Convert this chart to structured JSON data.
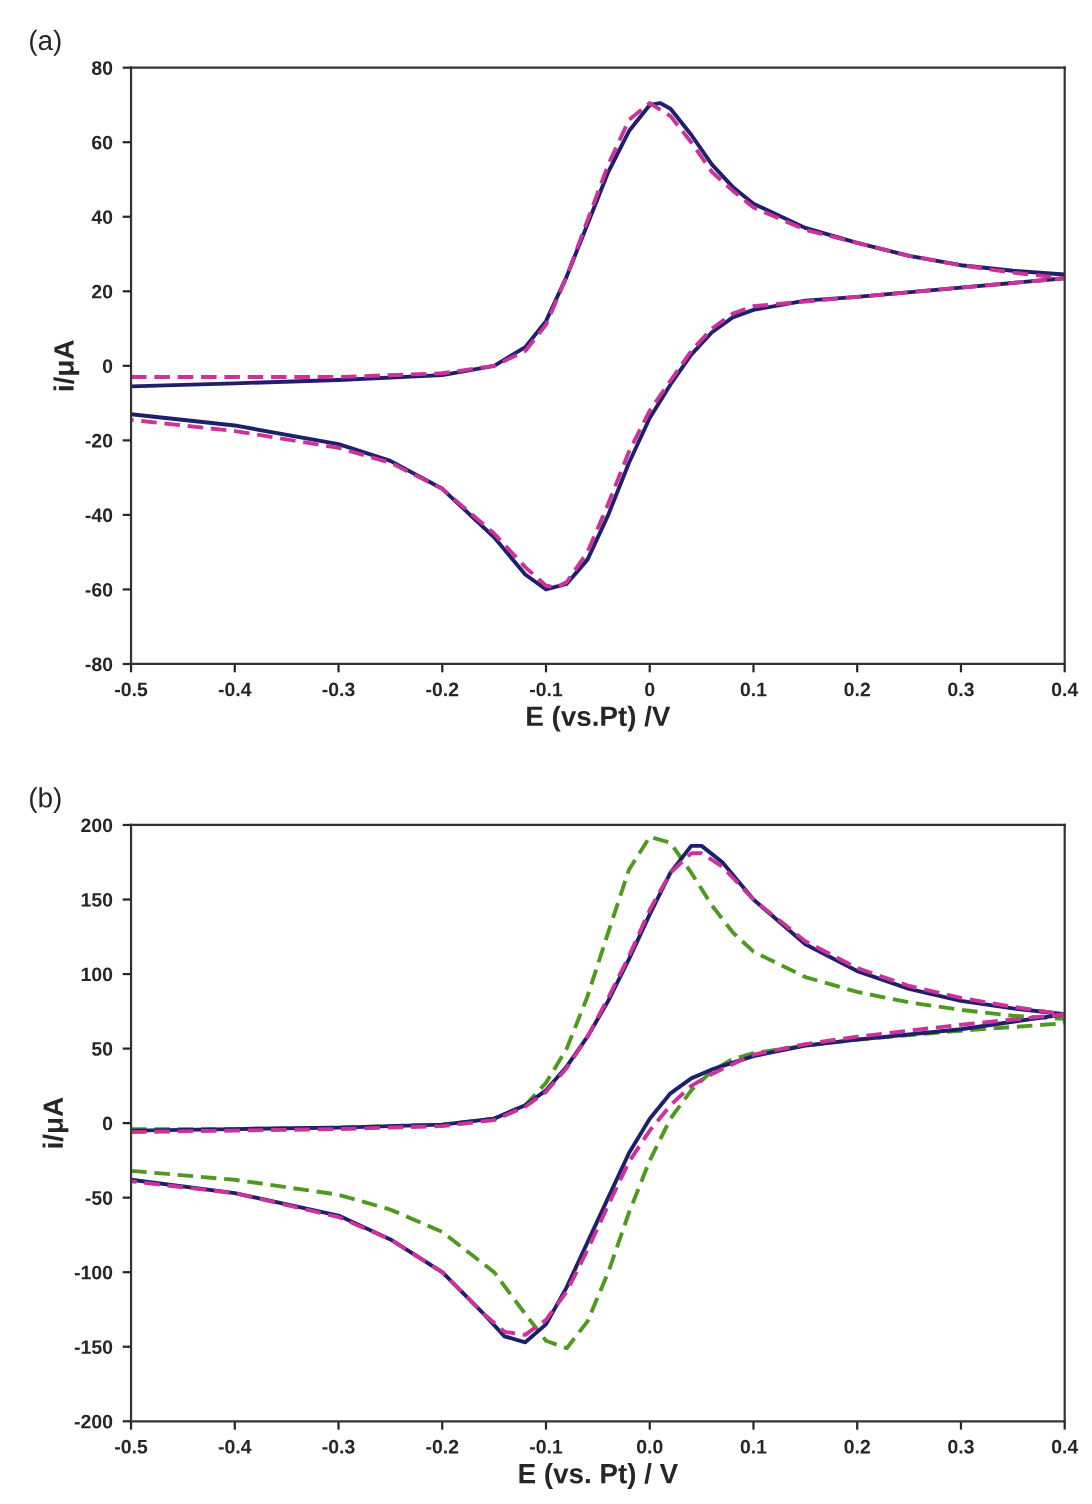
{
  "chart_data": [
    {
      "type": "line",
      "title": "(a)",
      "xlabel": "E (vs.Pt) /V",
      "ylabel": "i/μA",
      "xlim": [
        -0.5,
        0.4
      ],
      "ylim": [
        -80,
        80
      ],
      "xticks": [
        -0.5,
        -0.4,
        -0.3,
        -0.2,
        -0.1,
        0,
        0.1,
        0.2,
        0.3,
        0.4
      ],
      "yticks": [
        -80,
        -60,
        -40,
        -20,
        0,
        20,
        40,
        60,
        80
      ],
      "grid": false,
      "legend": false,
      "series": [
        {
          "color": "#1f1f6e",
          "line_style": "solid",
          "x": [
            -0.5,
            -0.4,
            -0.3,
            -0.2,
            -0.15,
            -0.12,
            -0.1,
            -0.08,
            -0.06,
            -0.04,
            -0.02,
            0,
            0.01,
            0.02,
            0.04,
            0.06,
            0.08,
            0.1,
            0.15,
            0.2,
            0.25,
            0.3,
            0.35,
            0.4,
            0.4,
            0.3,
            0.2,
            0.15,
            0.1,
            0.08,
            0.06,
            0.04,
            0.02,
            0,
            -0.02,
            -0.04,
            -0.06,
            -0.08,
            -0.1,
            -0.12,
            -0.15,
            -0.2,
            -0.25,
            -0.3,
            -0.4,
            -0.5
          ],
          "values": [
            -5.5,
            -4.7,
            -3.8,
            -2.5,
            0,
            5,
            12,
            24,
            38,
            52,
            63,
            70,
            70.5,
            69,
            62,
            54,
            48,
            43.5,
            37,
            33,
            29.5,
            27,
            25.5,
            24.5,
            23.5,
            21,
            18.5,
            17.5,
            15,
            13,
            9,
            3,
            -5,
            -14,
            -26,
            -40,
            -52,
            -58.5,
            -60,
            -56,
            -46,
            -33,
            -25.5,
            -21,
            -16,
            -13
          ]
        },
        {
          "color": "#cc3399",
          "line_style": "dashed",
          "x": [
            -0.5,
            -0.4,
            -0.3,
            -0.2,
            -0.15,
            -0.12,
            -0.1,
            -0.08,
            -0.06,
            -0.04,
            -0.02,
            0,
            0.02,
            0.04,
            0.06,
            0.08,
            0.1,
            0.15,
            0.2,
            0.25,
            0.3,
            0.35,
            0.4,
            0.4,
            0.3,
            0.2,
            0.1,
            0.08,
            0.06,
            0.04,
            0.02,
            0,
            -0.02,
            -0.04,
            -0.06,
            -0.08,
            -0.09,
            -0.1,
            -0.12,
            -0.15,
            -0.2,
            -0.25,
            -0.3,
            -0.4,
            -0.5
          ],
          "values": [
            -3,
            -3,
            -3,
            -2,
            0,
            4,
            11,
            24,
            39,
            54,
            66,
            70.5,
            67,
            60,
            52,
            47,
            42.5,
            36.5,
            33,
            29.5,
            27,
            25,
            23.5,
            23.5,
            21,
            18.5,
            16,
            14,
            10,
            4,
            -4,
            -12,
            -23,
            -37,
            -50,
            -58,
            -59.5,
            -59,
            -54,
            -45,
            -33,
            -26,
            -22,
            -17.5,
            -14.5
          ]
        }
      ]
    },
    {
      "type": "line",
      "title": "(b)",
      "xlabel": "E (vs. Pt) / V",
      "ylabel": "i/μA",
      "xlim": [
        -0.5,
        0.4
      ],
      "ylim": [
        -200,
        200
      ],
      "xticks": [
        -0.5,
        -0.4,
        -0.3,
        -0.2,
        -0.1,
        {
          "value": 0,
          "label": "0.0"
        },
        0.1,
        0.2,
        0.3,
        0.4
      ],
      "yticks": [
        -200,
        -150,
        -100,
        -50,
        0,
        50,
        100,
        150,
        200
      ],
      "grid": false,
      "legend": false,
      "series": [
        {
          "color": "#4d9a1f",
          "line_style": "dashed",
          "x": [
            -0.5,
            -0.4,
            -0.3,
            -0.2,
            -0.15,
            -0.12,
            -0.1,
            -0.08,
            -0.06,
            -0.04,
            -0.02,
            0,
            0.02,
            0.04,
            0.06,
            0.08,
            0.1,
            0.15,
            0.2,
            0.25,
            0.3,
            0.35,
            0.4,
            0.4,
            0.3,
            0.2,
            0.15,
            0.1,
            0.08,
            0.06,
            0.04,
            0.02,
            0,
            -0.02,
            -0.04,
            -0.06,
            -0.08,
            -0.1,
            -0.12,
            -0.15,
            -0.2,
            -0.25,
            -0.3,
            -0.4,
            -0.5
          ],
          "values": [
            -4,
            -4,
            -3,
            -1,
            3,
            12,
            27,
            50,
            85,
            128,
            170,
            192,
            188,
            168,
            146,
            128,
            115,
            98,
            88,
            81,
            76,
            72,
            70,
            67,
            62,
            56,
            52,
            47,
            43,
            35,
            22,
            3,
            -25,
            -60,
            -100,
            -133,
            -151,
            -146,
            -128,
            -100,
            -73,
            -58,
            -48,
            -38,
            -32
          ]
        },
        {
          "color": "#1f1f6e",
          "line_style": "solid",
          "x": [
            -0.5,
            -0.4,
            -0.3,
            -0.2,
            -0.15,
            -0.12,
            -0.1,
            -0.08,
            -0.06,
            -0.04,
            -0.02,
            0,
            0.02,
            0.04,
            0.05,
            0.07,
            0.1,
            0.15,
            0.2,
            0.25,
            0.3,
            0.35,
            0.4,
            0.4,
            0.3,
            0.2,
            0.15,
            0.1,
            0.06,
            0.04,
            0.02,
            0,
            -0.02,
            -0.04,
            -0.06,
            -0.08,
            -0.1,
            -0.12,
            -0.14,
            -0.16,
            -0.2,
            -0.25,
            -0.3,
            -0.4,
            -0.5
          ],
          "values": [
            -5,
            -4,
            -3,
            -1,
            3,
            12,
            22,
            38,
            58,
            82,
            110,
            140,
            168,
            186,
            186,
            175,
            150,
            120,
            102,
            90,
            82,
            77,
            73,
            73,
            63,
            56,
            52,
            45,
            36,
            30,
            20,
            3,
            -20,
            -50,
            -80,
            -110,
            -135,
            -147,
            -143,
            -128,
            -100,
            -78,
            -62,
            -47,
            -38
          ]
        },
        {
          "color": "#cc3399",
          "line_style": "dashed",
          "x": [
            -0.5,
            -0.4,
            -0.3,
            -0.2,
            -0.15,
            -0.12,
            -0.1,
            -0.08,
            -0.06,
            -0.04,
            -0.02,
            0,
            0.02,
            0.04,
            0.05,
            0.07,
            0.1,
            0.15,
            0.2,
            0.25,
            0.3,
            0.35,
            0.4,
            0.4,
            0.3,
            0.2,
            0.15,
            0.1,
            0.06,
            0.04,
            0.02,
            0,
            -0.02,
            -0.04,
            -0.06,
            -0.08,
            -0.1,
            -0.12,
            -0.14,
            -0.16,
            -0.2,
            -0.25,
            -0.3,
            -0.4,
            -0.5
          ],
          "values": [
            -6,
            -5,
            -4,
            -2,
            2,
            11,
            21,
            37,
            58,
            84,
            112,
            143,
            168,
            181,
            181,
            172,
            150,
            122,
            104,
            92,
            84,
            78,
            73,
            73,
            66,
            58,
            53,
            46,
            33,
            25,
            12,
            -5,
            -26,
            -55,
            -85,
            -113,
            -132,
            -142,
            -140,
            -128,
            -100,
            -78,
            -63,
            -47,
            -39
          ]
        }
      ]
    }
  ]
}
